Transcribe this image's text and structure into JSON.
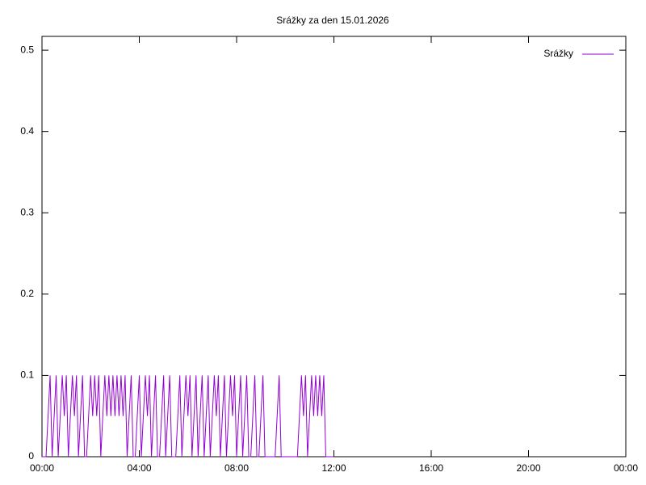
{
  "chart_data": {
    "type": "line",
    "title": "Srážky za den 15.01.2026",
    "x": [
      0,
      5,
      10,
      15,
      20,
      25,
      30,
      35,
      40,
      45,
      50,
      55,
      60,
      65,
      70,
      75,
      80,
      85,
      90,
      95,
      100,
      105,
      110,
      115,
      120,
      125,
      130,
      135,
      140,
      145,
      150,
      155,
      160,
      165,
      170,
      175,
      180,
      185,
      190,
      195,
      200,
      205,
      210,
      215,
      220,
      225,
      230,
      235,
      240,
      245,
      250,
      255,
      260,
      265,
      270,
      275,
      280,
      285,
      290,
      295,
      300,
      305,
      310,
      315,
      320,
      325,
      330,
      335,
      340,
      345,
      350,
      355,
      360,
      365,
      370,
      375,
      380,
      385,
      390,
      395,
      400,
      405,
      410,
      415,
      420,
      425,
      430,
      435,
      440,
      445,
      450,
      455,
      460,
      465,
      470,
      475,
      480,
      485,
      490,
      495,
      500,
      505,
      510,
      515,
      520,
      525,
      530,
      535,
      540,
      545,
      550,
      555,
      560,
      565,
      570,
      575,
      580,
      585,
      590,
      595,
      600,
      605,
      610,
      615,
      620,
      625,
      630,
      635,
      640,
      645,
      650,
      655,
      660,
      665,
      670,
      675,
      680,
      685,
      690,
      695,
      700,
      705,
      710,
      715,
      720
    ],
    "series": [
      {
        "name": "Srážky",
        "color": "#9400d3",
        "values": [
          0,
          0,
          0,
          0.05,
          0.1,
          0,
          0.05,
          0.1,
          0,
          0.05,
          0.1,
          0.05,
          0.1,
          0,
          0.05,
          0.1,
          0.05,
          0.1,
          0,
          0.05,
          0.1,
          0,
          0,
          0.05,
          0.1,
          0.05,
          0.1,
          0.05,
          0.1,
          0,
          0.05,
          0.1,
          0.05,
          0.1,
          0.05,
          0.1,
          0.05,
          0.1,
          0.05,
          0.1,
          0.05,
          0.1,
          0,
          0.05,
          0.1,
          0,
          0,
          0.05,
          0.1,
          0,
          0.05,
          0.1,
          0.05,
          0.1,
          0,
          0.05,
          0.1,
          0,
          0,
          0.05,
          0.1,
          0,
          0.05,
          0.1,
          0,
          0,
          0,
          0.05,
          0.1,
          0,
          0.05,
          0.1,
          0.05,
          0.1,
          0,
          0.05,
          0.1,
          0,
          0.05,
          0.1,
          0,
          0.05,
          0.1,
          0,
          0.05,
          0.1,
          0.05,
          0.1,
          0,
          0.05,
          0.1,
          0,
          0.05,
          0.1,
          0.05,
          0.1,
          0,
          0.05,
          0.1,
          0,
          0.05,
          0.1,
          0,
          0,
          0.05,
          0.1,
          0,
          0,
          0.05,
          0.1,
          0,
          0,
          0,
          0,
          0,
          0,
          0.05,
          0.1,
          0,
          0,
          0,
          0,
          0,
          0,
          0,
          0,
          0,
          0.05,
          0.1,
          0.05,
          0.1,
          0,
          0.05,
          0.1,
          0.05,
          0.1,
          0.05,
          0.1,
          0.05,
          0.1,
          0,
          0,
          0,
          0,
          0
        ]
      }
    ],
    "xlim": [
      0,
      1440
    ],
    "xticks": [
      {
        "value": 0,
        "label": "00:00"
      },
      {
        "value": 240,
        "label": "04:00"
      },
      {
        "value": 480,
        "label": "08:00"
      },
      {
        "value": 720,
        "label": "12:00"
      },
      {
        "value": 960,
        "label": "16:00"
      },
      {
        "value": 1200,
        "label": "20:00"
      },
      {
        "value": 1440,
        "label": "00:00"
      }
    ],
    "ylim": [
      0,
      0.517
    ],
    "yticks": [
      0,
      0.1,
      0.2,
      0.3,
      0.4,
      0.5
    ],
    "grid": false,
    "legend": "top-right"
  }
}
